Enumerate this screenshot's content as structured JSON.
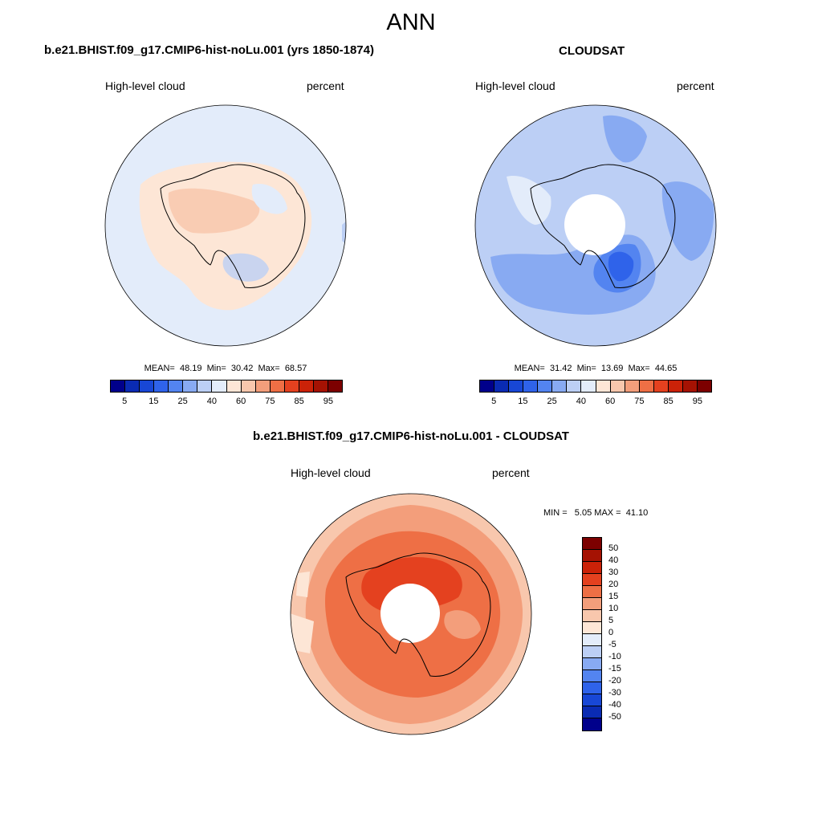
{
  "title": "ANN",
  "panels": {
    "model": {
      "title": "b.e21.BHIST.f09_g17.CMIP6-hist-noLu.001 (yrs 1850-1874)",
      "variable": "High-level cloud",
      "units": "percent",
      "stats": "MEAN=  48.19  Min=  30.42  Max=  68.57"
    },
    "obs": {
      "title": "CLOUDSAT",
      "variable": "High-level cloud",
      "units": "percent",
      "stats": "MEAN=  31.42  Min=  13.69  Max=  44.65"
    },
    "diff": {
      "title": "b.e21.BHIST.f09_g17.CMIP6-hist-noLu.001 - CLOUDSAT",
      "variable": "High-level cloud",
      "units": "percent",
      "stats": "MIN =   5.05 MAX =  41.10"
    }
  },
  "colorbar_main": {
    "colors": [
      "#00008b",
      "#0a2bb3",
      "#1847d6",
      "#2f63ea",
      "#5384f0",
      "#88aaf2",
      "#bccff5",
      "#e3ecfa",
      "#fde6d6",
      "#f8c7ad",
      "#f39e7b",
      "#ee6f45",
      "#e4411f",
      "#cb2208",
      "#a51203",
      "#7c0000"
    ],
    "labels": [
      "5",
      "15",
      "25",
      "40",
      "60",
      "75",
      "85",
      "95"
    ]
  },
  "colorbar_diff": {
    "colors": [
      "#7c0000",
      "#a51203",
      "#cb2208",
      "#e4411f",
      "#ee6f45",
      "#f39e7b",
      "#f8c7ad",
      "#fde6d6",
      "#e3ecfa",
      "#bccff5",
      "#88aaf2",
      "#5384f0",
      "#2f63ea",
      "#1847d6",
      "#0a2bb3",
      "#00008b"
    ],
    "labels": [
      "50",
      "40",
      "30",
      "20",
      "15",
      "10",
      "5",
      "0",
      "-5",
      "-10",
      "-15",
      "-20",
      "-30",
      "-40",
      "-50"
    ]
  }
}
